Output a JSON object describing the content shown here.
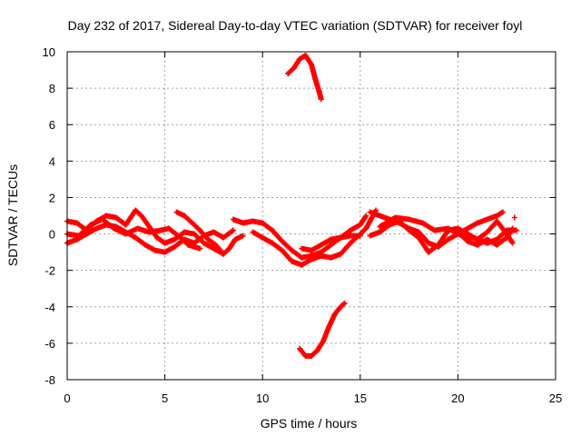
{
  "chart_data": {
    "type": "scatter",
    "title": "Day 232 of 2017, Sidereal Day-to-day VTEC variation (SDTVAR) for receiver foyl",
    "xlabel": "GPS time / hours",
    "ylabel": "SDTVAR / TECUs",
    "xlim": [
      0,
      25
    ],
    "ylim": [
      -8,
      10
    ],
    "xticks": [
      0,
      5,
      10,
      15,
      20,
      25
    ],
    "yticks": [
      -8,
      -6,
      -4,
      -2,
      0,
      2,
      4,
      6,
      8,
      10
    ],
    "grid": true,
    "marker": "+",
    "color": "#ff0000",
    "series": [
      {
        "name": "track-a",
        "points": [
          [
            0,
            0.7
          ],
          [
            0.5,
            0.6
          ],
          [
            1,
            0.2
          ],
          [
            1.5,
            0.7
          ],
          [
            2,
            1.0
          ],
          [
            2.5,
            0.9
          ],
          [
            3,
            0.5
          ],
          [
            3.5,
            1.3
          ],
          [
            3.8,
            1.0
          ],
          [
            4.2,
            0.4
          ],
          [
            4.6,
            -0.2
          ],
          [
            5,
            -0.5
          ],
          [
            5.5,
            -0.3
          ],
          [
            6,
            0.1
          ],
          [
            6.5,
            0.0
          ],
          [
            7,
            -0.5
          ],
          [
            7.5,
            -0.8
          ],
          [
            8,
            -1.1
          ]
        ]
      },
      {
        "name": "track-b",
        "points": [
          [
            0,
            -0.5
          ],
          [
            0.5,
            -0.3
          ],
          [
            1,
            0.0
          ],
          [
            1.5,
            0.3
          ],
          [
            2,
            0.5
          ],
          [
            2.5,
            0.4
          ],
          [
            3,
            0.1
          ],
          [
            3.5,
            -0.2
          ],
          [
            4,
            -0.6
          ],
          [
            4.5,
            -0.9
          ],
          [
            5,
            -1.0
          ],
          [
            5.5,
            -0.7
          ],
          [
            6,
            -0.3
          ],
          [
            6.5,
            -0.5
          ],
          [
            7,
            -0.1
          ],
          [
            7.5,
            0.1
          ],
          [
            8,
            -0.2
          ],
          [
            8.5,
            0.2
          ]
        ]
      },
      {
        "name": "track-c",
        "points": [
          [
            0,
            0.0
          ],
          [
            0.6,
            -0.1
          ],
          [
            1.2,
            0.5
          ],
          [
            1.8,
            0.8
          ],
          [
            2.4,
            0.3
          ],
          [
            3,
            0.0
          ],
          [
            3.6,
            0.3
          ],
          [
            4.2,
            0.1
          ],
          [
            4.8,
            0.2
          ],
          [
            5.2,
            0.3
          ],
          [
            5.8,
            -0.2
          ],
          [
            6.2,
            -0.6
          ],
          [
            6.8,
            -0.8
          ]
        ]
      },
      {
        "name": "track-d",
        "points": [
          [
            5.6,
            1.2
          ],
          [
            6,
            1.0
          ],
          [
            6.4,
            0.6
          ],
          [
            6.8,
            0.2
          ],
          [
            7.2,
            -0.3
          ],
          [
            7.6,
            -0.6
          ],
          [
            8,
            -1.1
          ],
          [
            8.3,
            -0.8
          ],
          [
            8.6,
            -0.3
          ],
          [
            9,
            -0.1
          ]
        ]
      },
      {
        "name": "track-e",
        "points": [
          [
            8.5,
            0.8
          ],
          [
            9,
            0.6
          ],
          [
            9.5,
            0.7
          ],
          [
            10,
            0.6
          ],
          [
            10.5,
            0.2
          ],
          [
            11,
            -0.4
          ],
          [
            11.5,
            -0.9
          ],
          [
            12,
            -1.3
          ],
          [
            12.5,
            -1.2
          ],
          [
            13,
            -1.0
          ],
          [
            13.5,
            -0.6
          ],
          [
            14,
            -0.2
          ],
          [
            14.5,
            0.2
          ],
          [
            15,
            0.5
          ],
          [
            15.3,
            1.0
          ]
        ]
      },
      {
        "name": "track-f",
        "points": [
          [
            9.5,
            0.1
          ],
          [
            10,
            -0.2
          ],
          [
            10.5,
            -0.5
          ],
          [
            11,
            -0.9
          ],
          [
            11.5,
            -1.5
          ],
          [
            12,
            -1.7
          ],
          [
            12.5,
            -1.4
          ],
          [
            13,
            -1.2
          ],
          [
            13.5,
            -1.3
          ],
          [
            14,
            -1.1
          ],
          [
            14.5,
            -0.5
          ],
          [
            15,
            0.0
          ],
          [
            15.3,
            0.3
          ],
          [
            15.8,
            1.3
          ]
        ]
      },
      {
        "name": "track-g",
        "points": [
          [
            12,
            -0.8
          ],
          [
            12.5,
            -0.9
          ],
          [
            13,
            -0.6
          ],
          [
            13.5,
            -0.3
          ],
          [
            14,
            -0.2
          ],
          [
            14.5,
            -0.1
          ],
          [
            15,
            -0.1
          ]
        ]
      },
      {
        "name": "track-h",
        "points": [
          [
            15.5,
            1.2
          ],
          [
            16,
            1.0
          ],
          [
            16.5,
            0.8
          ],
          [
            17,
            0.6
          ],
          [
            17.5,
            0.3
          ],
          [
            18,
            0.1
          ],
          [
            18.5,
            -0.5
          ],
          [
            19,
            -0.7
          ],
          [
            19.5,
            -0.3
          ],
          [
            20,
            0.0
          ],
          [
            20.5,
            0.3
          ],
          [
            21,
            0.6
          ],
          [
            21.5,
            0.8
          ],
          [
            22,
            1.0
          ],
          [
            22.3,
            1.2
          ]
        ]
      },
      {
        "name": "track-i",
        "points": [
          [
            15.5,
            -0.1
          ],
          [
            16,
            0.1
          ],
          [
            16.5,
            0.5
          ],
          [
            17,
            0.7
          ],
          [
            17.5,
            0.2
          ],
          [
            18,
            -0.2
          ],
          [
            18.5,
            -1.0
          ],
          [
            19,
            -0.6
          ],
          [
            19.5,
            0.2
          ],
          [
            20,
            0.3
          ],
          [
            20.5,
            0.0
          ],
          [
            21,
            -0.3
          ],
          [
            21.5,
            0.1
          ],
          [
            22,
            0.7
          ],
          [
            22.5,
            0.0
          ],
          [
            22.8,
            -0.5
          ]
        ]
      },
      {
        "name": "track-j",
        "points": [
          [
            16,
            0.4
          ],
          [
            16.8,
            0.9
          ],
          [
            17.5,
            0.8
          ],
          [
            18.2,
            0.6
          ],
          [
            18.8,
            0.2
          ],
          [
            19.5,
            0.3
          ],
          [
            20.2,
            -0.1
          ],
          [
            20.8,
            -0.2
          ],
          [
            21.5,
            -0.5
          ],
          [
            22,
            -0.3
          ],
          [
            22.5,
            0.2
          ],
          [
            23,
            0.2
          ]
        ]
      },
      {
        "name": "track-k",
        "points": [
          [
            20,
            0.1
          ],
          [
            20.5,
            -0.4
          ],
          [
            21,
            -0.6
          ],
          [
            21.5,
            -0.3
          ],
          [
            22,
            -0.6
          ],
          [
            22.5,
            -0.2
          ],
          [
            22.8,
            0.3
          ]
        ]
      },
      {
        "name": "upper-arc",
        "points": [
          [
            11.3,
            8.8
          ],
          [
            11.6,
            9.1
          ],
          [
            11.9,
            9.6
          ],
          [
            12.2,
            9.8
          ],
          [
            12.5,
            9.3
          ],
          [
            12.7,
            8.5
          ],
          [
            12.9,
            7.8
          ],
          [
            13,
            7.4
          ]
        ]
      },
      {
        "name": "lower-arc",
        "points": [
          [
            11.9,
            -6.3
          ],
          [
            12.2,
            -6.7
          ],
          [
            12.5,
            -6.7
          ],
          [
            12.8,
            -6.4
          ],
          [
            13.1,
            -5.9
          ],
          [
            13.4,
            -5.1
          ],
          [
            13.7,
            -4.4
          ],
          [
            14,
            -4.0
          ],
          [
            14.2,
            -3.8
          ]
        ]
      },
      {
        "name": "outliers",
        "points": [
          [
            22.9,
            0.9
          ]
        ]
      }
    ]
  }
}
